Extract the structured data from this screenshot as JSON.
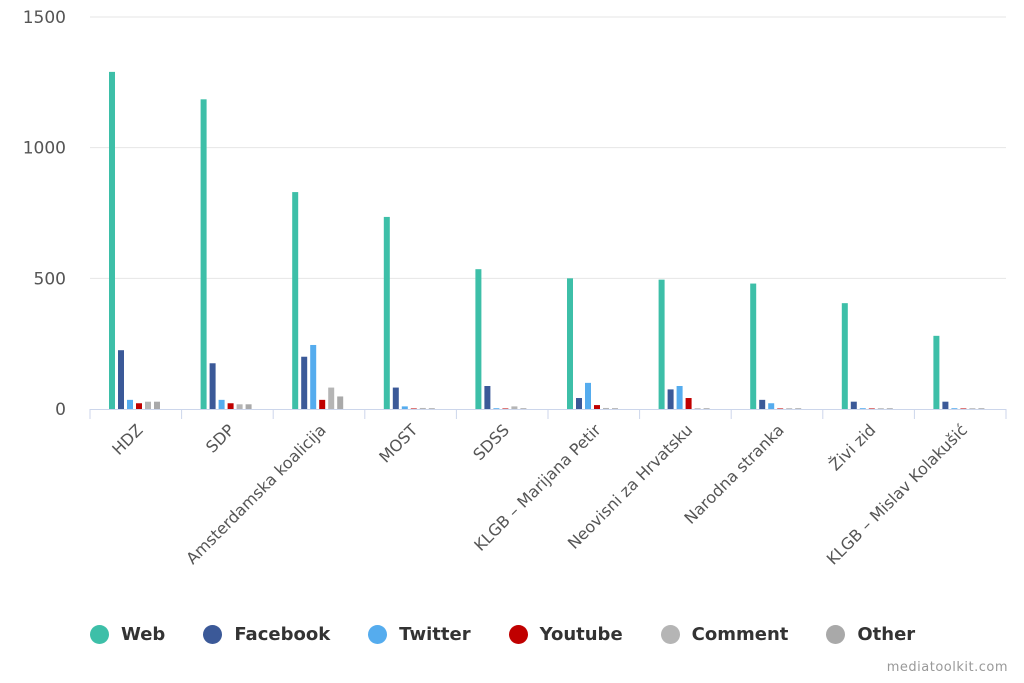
{
  "chart_data": {
    "type": "bar",
    "categories": [
      "HDZ",
      "SDP",
      "Amsterdamska koalicija",
      "MOST",
      "SDSS",
      "KLGB – Marijana Petir",
      "Neovisni za Hrvatsku",
      "Narodna stranka",
      "Živi zid",
      "KLGB – Mislav Kolakušić"
    ],
    "series": [
      {
        "name": "Web",
        "color": "#3dbfa8",
        "values": [
          1290,
          1185,
          830,
          735,
          535,
          500,
          495,
          480,
          405,
          280
        ]
      },
      {
        "name": "Facebook",
        "color": "#3b5998",
        "values": [
          225,
          175,
          200,
          82,
          88,
          42,
          75,
          35,
          28,
          28
        ]
      },
      {
        "name": "Twitter",
        "color": "#55acee",
        "values": [
          35,
          35,
          245,
          10,
          3,
          100,
          88,
          22,
          3,
          3
        ]
      },
      {
        "name": "Youtube",
        "color": "#c00000",
        "values": [
          22,
          22,
          35,
          2,
          2,
          15,
          42,
          2,
          2,
          2
        ]
      },
      {
        "name": "Comment",
        "color": "#b5b5b5",
        "values": [
          28,
          18,
          82,
          4,
          10,
          4,
          3,
          3,
          3,
          3
        ]
      },
      {
        "name": "Other",
        "color": "#a9a9a9",
        "values": [
          28,
          18,
          48,
          3,
          3,
          3,
          3,
          3,
          3,
          3
        ]
      }
    ],
    "yticks": [
      0,
      500,
      1000,
      1500
    ],
    "ylim": [
      0,
      1500
    ],
    "grid": true,
    "legend": "bottom"
  },
  "credit": "mediatoolkit.com"
}
